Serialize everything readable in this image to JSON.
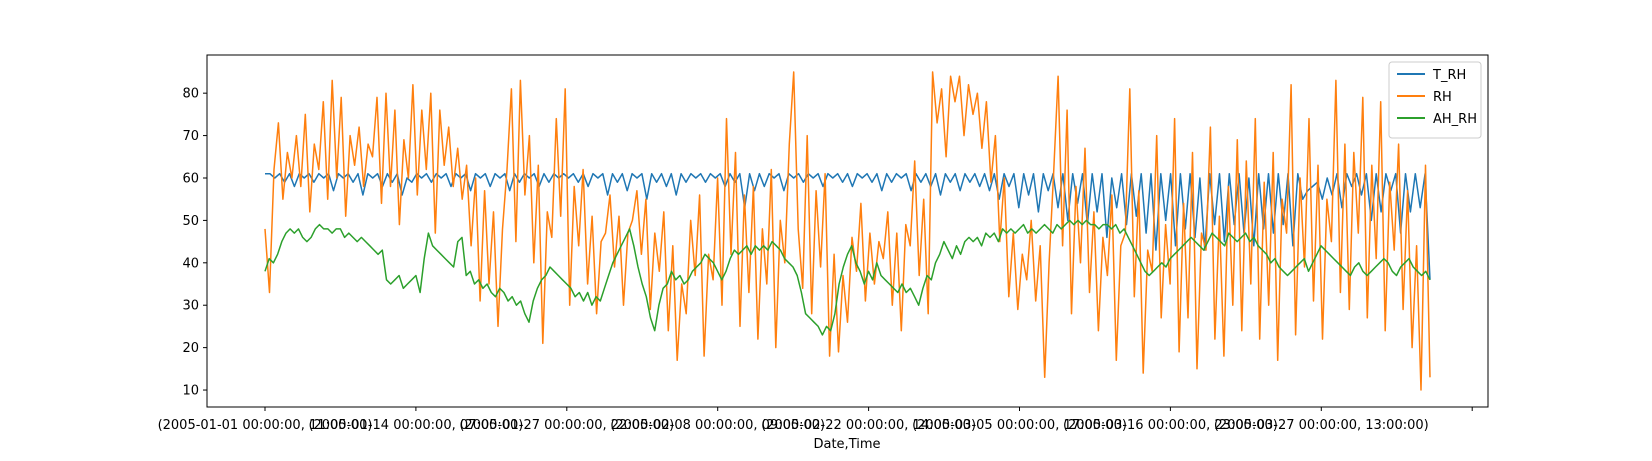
{
  "chart_data": {
    "type": "line",
    "title": "",
    "xlabel": "Date,Time",
    "ylabel": "",
    "ylim": [
      6,
      89
    ],
    "yticks": [
      10,
      20,
      30,
      40,
      50,
      60,
      70,
      80
    ],
    "x_tick_labels": [
      "(2005-01-01 00:00:00, 11:00:00)",
      "(2005-01-14 00:00:00, 07:00:00)",
      "(2005-01-27 00:00:00, 22:00:00)",
      "(2005-02-08 00:00:00, 09:00:00)",
      "(2005-02-22 00:00:00, 14:00:00)",
      "(2005-03-05 00:00:00, 17:00:00)",
      "(2005-03-16 00:00:00, 23:00:00)",
      "(2005-03-27 00:00:00, 13:00:00)",
      ""
    ],
    "grid": false,
    "legend_position": "top-right",
    "series": [
      {
        "name": "T_RH",
        "color": "#1f77b4",
        "values": [
          61,
          61,
          60,
          61,
          59,
          61,
          58,
          61,
          60,
          61,
          59,
          61,
          60,
          61,
          57,
          61,
          60,
          61,
          59,
          61,
          56,
          61,
          60,
          61,
          58,
          61,
          59,
          61,
          56,
          60,
          59,
          61,
          60,
          61,
          59,
          61,
          60,
          61,
          58,
          61,
          60,
          61,
          57,
          61,
          60,
          61,
          58,
          61,
          60,
          61,
          57,
          61,
          59,
          61,
          60,
          61,
          58,
          61,
          59,
          61,
          60,
          61,
          60,
          61,
          59,
          61,
          58,
          61,
          60,
          61,
          56,
          61,
          59,
          61,
          57,
          61,
          60,
          61,
          55,
          61,
          59,
          61,
          58,
          61,
          56,
          61,
          59,
          61,
          60,
          61,
          59,
          61,
          60,
          61,
          58,
          61,
          59,
          61,
          53,
          61,
          57,
          61,
          58,
          61,
          60,
          61,
          57,
          61,
          60,
          61,
          59,
          61,
          60,
          61,
          58,
          61,
          60,
          61,
          59,
          61,
          58,
          61,
          60,
          61,
          59,
          61,
          57,
          61,
          59,
          61,
          60,
          61,
          57,
          61,
          59,
          61,
          58,
          61,
          56,
          61,
          59,
          61,
          57,
          61,
          59,
          61,
          58,
          61,
          57,
          61,
          55,
          61,
          58,
          61,
          53,
          61,
          56,
          61,
          52,
          61,
          57,
          61,
          53,
          61,
          50,
          61,
          54,
          61,
          49,
          61,
          52,
          61,
          46,
          60,
          53,
          61,
          49,
          61,
          51,
          61,
          47,
          61,
          43,
          61,
          50,
          61,
          44,
          61,
          48,
          61,
          46,
          60,
          43,
          61,
          49,
          61,
          45,
          61,
          49,
          61,
          47,
          60,
          44,
          61,
          48,
          61,
          47,
          61,
          49,
          61,
          44,
          61,
          55,
          57,
          58,
          59,
          55,
          60,
          56,
          61,
          53,
          61,
          58,
          61,
          56,
          61,
          50,
          61,
          52,
          61,
          57,
          61,
          47,
          61,
          52,
          61,
          53,
          61,
          36
        ]
      },
      {
        "name": "RH",
        "color": "#ff7f0e",
        "values": [
          48,
          33,
          62,
          73,
          55,
          66,
          60,
          70,
          58,
          75,
          52,
          68,
          62,
          78,
          55,
          83,
          60,
          79,
          51,
          70,
          63,
          72,
          58,
          68,
          65,
          79,
          54,
          80,
          58,
          76,
          49,
          69,
          60,
          82,
          56,
          76,
          62,
          80,
          47,
          76,
          63,
          72,
          58,
          67,
          55,
          63,
          44,
          60,
          31,
          57,
          35,
          52,
          25,
          48,
          62,
          81,
          45,
          83,
          56,
          70,
          40,
          63,
          21,
          52,
          46,
          74,
          51,
          81,
          30,
          58,
          44,
          62,
          35,
          51,
          28,
          45,
          47,
          56,
          39,
          51,
          30,
          47,
          50,
          57,
          42,
          55,
          29,
          47,
          38,
          52,
          24,
          44,
          17,
          35,
          28,
          50,
          37,
          56,
          18,
          42,
          36,
          60,
          30,
          74,
          42,
          66,
          25,
          56,
          33,
          58,
          22,
          48,
          35,
          62,
          20,
          50,
          40,
          68,
          85,
          48,
          34,
          70,
          28,
          57,
          39,
          61,
          18,
          42,
          19,
          37,
          26,
          46,
          38,
          54,
          31,
          47,
          35,
          45,
          41,
          52,
          30,
          47,
          24,
          49,
          44,
          64,
          37,
          55,
          28,
          85,
          73,
          81,
          65,
          84,
          78,
          84,
          70,
          82,
          75,
          80,
          67,
          78,
          59,
          70,
          45,
          60,
          32,
          47,
          29,
          42,
          36,
          50,
          31,
          44,
          13,
          40,
          61,
          84,
          44,
          76,
          28,
          58,
          40,
          67,
          33,
          52,
          24,
          46,
          37,
          56,
          17,
          44,
          47,
          81,
          32,
          57,
          14,
          43,
          38,
          70,
          27,
          49,
          35,
          74,
          19,
          54,
          27,
          66,
          15,
          47,
          43,
          72,
          22,
          51,
          18,
          58,
          30,
          69,
          24,
          64,
          35,
          74,
          22,
          59,
          30,
          66,
          17,
          55,
          47,
          82,
          23,
          60,
          39,
          74,
          31,
          63,
          22,
          55,
          45,
          83,
          33,
          68,
          29,
          66,
          47,
          79,
          27,
          63,
          41,
          78,
          24,
          59,
          43,
          68,
          29,
          57,
          20,
          44,
          10,
          63,
          13
        ]
      },
      {
        "name": "AH_RH",
        "color": "#2ca02c",
        "values": [
          38,
          41,
          40,
          42,
          45,
          47,
          48,
          47,
          48,
          46,
          45,
          46,
          48,
          49,
          48,
          48,
          47,
          48,
          48,
          46,
          47,
          46,
          45,
          46,
          45,
          44,
          43,
          42,
          43,
          36,
          35,
          36,
          37,
          34,
          35,
          36,
          37,
          33,
          41,
          47,
          44,
          43,
          42,
          41,
          40,
          39,
          45,
          46,
          37,
          38,
          35,
          36,
          34,
          35,
          33,
          32,
          34,
          33,
          31,
          32,
          30,
          31,
          28,
          26,
          31,
          34,
          36,
          37,
          39,
          38,
          37,
          36,
          35,
          34,
          32,
          33,
          31,
          33,
          30,
          32,
          31,
          34,
          37,
          40,
          42,
          44,
          46,
          48,
          44,
          39,
          35,
          32,
          27,
          24,
          30,
          34,
          35,
          38,
          36,
          37,
          35,
          36,
          38,
          39,
          40,
          42,
          41,
          40,
          38,
          36,
          38,
          41,
          43,
          42,
          43,
          44,
          42,
          44,
          43,
          44,
          43,
          45,
          44,
          43,
          41,
          40,
          39,
          37,
          33,
          28,
          27,
          26,
          25,
          23,
          25,
          24,
          28,
          35,
          39,
          42,
          44,
          40,
          38,
          35,
          38,
          36,
          40,
          37,
          36,
          35,
          34,
          33,
          35,
          33,
          34,
          32,
          30,
          34,
          37,
          36,
          40,
          42,
          45,
          43,
          41,
          44,
          42,
          45,
          46,
          45,
          46,
          44,
          47,
          46,
          47,
          45,
          48,
          47,
          48,
          47,
          48,
          49,
          47,
          48,
          47,
          48,
          49,
          48,
          47,
          49,
          48,
          49,
          50,
          49,
          50,
          49,
          50,
          49,
          49,
          48,
          49,
          49,
          48,
          49,
          47,
          48,
          46,
          44,
          42,
          40,
          38,
          37,
          38,
          39,
          40,
          39,
          41,
          42,
          43,
          44,
          45,
          46,
          45,
          44,
          43,
          45,
          47,
          46,
          45,
          44,
          47,
          46,
          45,
          46,
          47,
          45,
          46,
          44,
          43,
          42,
          40,
          41,
          39,
          38,
          37,
          38,
          39,
          40,
          41,
          38,
          40,
          42,
          44,
          43,
          42,
          41,
          40,
          39,
          38,
          37,
          39,
          40,
          38,
          37,
          38,
          39,
          40,
          41,
          40,
          38,
          37,
          39,
          40,
          41,
          39,
          38,
          37,
          38,
          36
        ]
      }
    ]
  }
}
